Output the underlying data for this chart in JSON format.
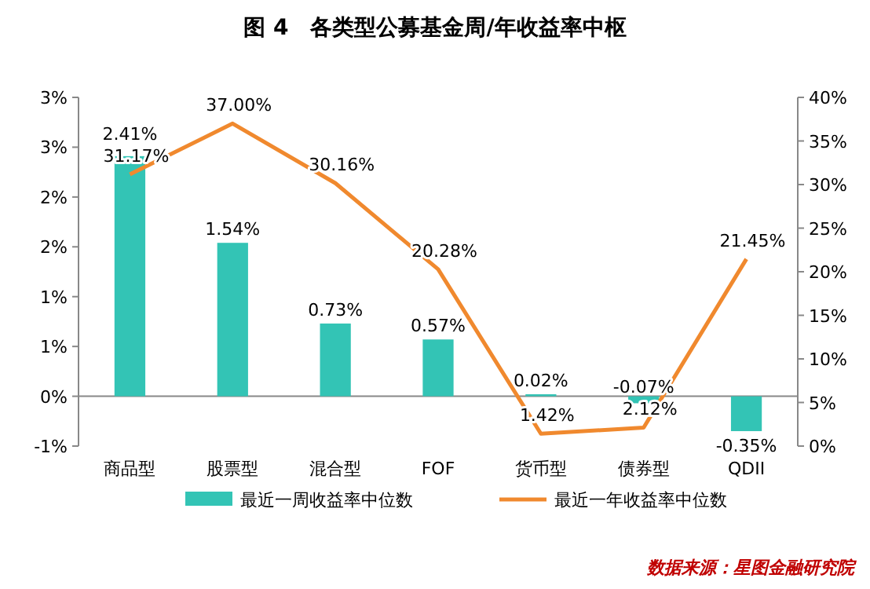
{
  "chart_data": {
    "type": "bar",
    "title": "图 4　各类型公募基金周/年收益率中枢",
    "categories": [
      "商品型",
      "股票型",
      "混合型",
      "FOF",
      "货币型",
      "债券型",
      "QDII"
    ],
    "series": [
      {
        "name": "最近一周收益率中位数",
        "color": "#33c4b5",
        "values": [
          2.41,
          1.54,
          0.73,
          0.57,
          0.02,
          -0.07,
          -0.35
        ]
      },
      {
        "name": "最近一年收益率中位数",
        "type": "line",
        "axis": "y2",
        "color": "#f0892e",
        "values": [
          31.17,
          37.0,
          30.16,
          20.28,
          1.42,
          2.12,
          21.45
        ]
      }
    ],
    "ylim": [
      -0.5,
      3
    ],
    "yticks": [
      {
        "value": -0.5,
        "label": "-1%"
      },
      {
        "value": 0,
        "label": "0%"
      },
      {
        "value": 0.5,
        "label": "1%"
      },
      {
        "value": 1,
        "label": "1%"
      },
      {
        "value": 1.5,
        "label": "2%"
      },
      {
        "value": 2,
        "label": "2%"
      },
      {
        "value": 2.5,
        "label": "3%"
      },
      {
        "value": 3,
        "label": "3%"
      }
    ],
    "y2lim": [
      0,
      40
    ],
    "y2ticks": [
      {
        "value": 0,
        "label": "0%"
      },
      {
        "value": 5,
        "label": "5%"
      },
      {
        "value": 10,
        "label": "10%"
      },
      {
        "value": 15,
        "label": "15%"
      },
      {
        "value": 20,
        "label": "20%"
      },
      {
        "value": 25,
        "label": "25%"
      },
      {
        "value": 30,
        "label": "30%"
      },
      {
        "value": 35,
        "label": "35%"
      },
      {
        "value": 40,
        "label": "40%"
      }
    ],
    "value_labels": [
      [
        "2.41%",
        "1.54%",
        "0.73%",
        "0.57%",
        "0.02%",
        "-0.07%",
        "-0.35%"
      ],
      [
        "31.17%",
        "37.00%",
        "30.16%",
        "20.28%",
        "1.42%",
        "2.12%",
        "21.45%"
      ]
    ],
    "legend": "bottom",
    "marker": "none",
    "annotations": [
      "数据来源：星图金融研究院"
    ]
  }
}
